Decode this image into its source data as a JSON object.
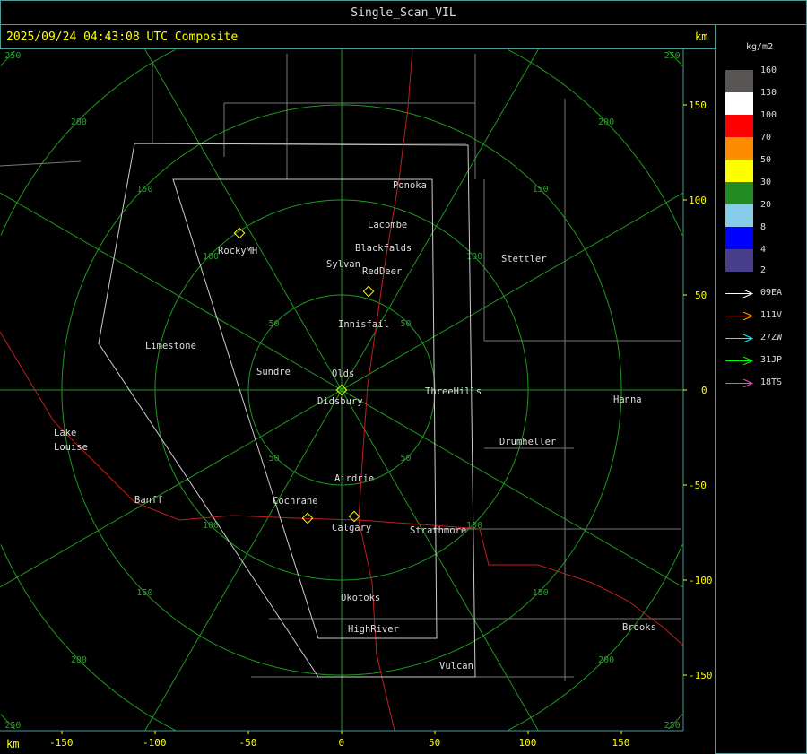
{
  "window_title": "Single_Scan_VIL",
  "timestamp": "2025/09/24 04:43:08 UTC Composite",
  "axis_unit": "km",
  "legend": {
    "unit": "kg/m2",
    "levels": [
      {
        "label": "160",
        "color": "#595555"
      },
      {
        "label": "130",
        "color": "#ffffff"
      },
      {
        "label": "100",
        "color": "#ff0000"
      },
      {
        "label": "70",
        "color": "#ff8c00"
      },
      {
        "label": "50",
        "color": "#ffff00"
      },
      {
        "label": "30",
        "color": "#228b22"
      },
      {
        "label": "20",
        "color": "#87cdea"
      },
      {
        "label": "8",
        "color": "#0000ff"
      },
      {
        "label": "4",
        "color": "#483d8b"
      }
    ],
    "bottom_label": "2"
  },
  "tracks": [
    {
      "id": "09EA",
      "color": "#ffffff"
    },
    {
      "id": "111V",
      "color": "#ffa500"
    },
    {
      "id": "27ZW",
      "color": "#00ffff"
    },
    {
      "id": "31JP",
      "color": "#00ff00"
    },
    {
      "id": "18TS",
      "color": "#ff44cc"
    }
  ],
  "x_ticks": [
    "-150",
    "-100",
    "-50",
    "0",
    "50",
    "100",
    "150"
  ],
  "y_ticks": [
    "150",
    "100",
    "50",
    "0",
    "-50",
    "-100",
    "-150"
  ],
  "ring_labels": [
    "50",
    "100",
    "150",
    "200",
    "250"
  ],
  "places": [
    "Ponoka",
    "Lacombe",
    "Blackfalds",
    "Sylvan",
    "RedDeer",
    "RockyMH",
    "Stettler",
    "Innisfail",
    "Limestone",
    "Sundre",
    "Olds",
    "Didsbury",
    "ThreeHills",
    "Hanna",
    "Drumheller",
    "Lake",
    "Louise",
    "Airdrie",
    "Banff",
    "Cochrane",
    "Calgary",
    "Strathmore",
    "Okotoks",
    "HighRiver",
    "Vulcan",
    "Brooks"
  ]
}
